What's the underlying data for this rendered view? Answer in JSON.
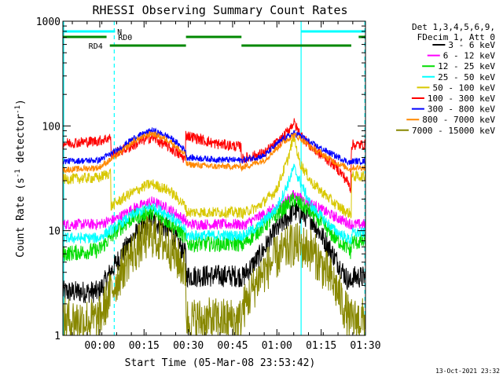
{
  "chart_data": {
    "type": "line",
    "title": "RHESSI Observing Summary Count Rates",
    "xlabel": "Start Time (05-Mar-08 23:53:42)",
    "ylabel_main": "Count Rate (s",
    "ylabel_sup1": "-1",
    "ylabel_mid": " detector",
    "ylabel_sup2": "-1",
    "ylabel_end": ")",
    "y_scale": "log",
    "ylim": [
      1,
      1000
    ],
    "xlim_minutes": [
      -6.2,
      96.3
    ],
    "x_ticks": [
      {
        "m": 6.3,
        "label": "00:00"
      },
      {
        "m": 21.3,
        "label": "00:15"
      },
      {
        "m": 36.3,
        "label": "00:30"
      },
      {
        "m": 51.3,
        "label": "00:45"
      },
      {
        "m": 66.3,
        "label": "01:00"
      },
      {
        "m": 81.3,
        "label": "01:15"
      },
      {
        "m": 96.3,
        "label": "01:30"
      }
    ],
    "y_ticks": [
      {
        "v": 1,
        "label": "1"
      },
      {
        "v": 10,
        "label": "10"
      },
      {
        "v": 100,
        "label": "100"
      },
      {
        "v": 1000,
        "label": "1000"
      }
    ],
    "footer_date": "13-Oct-2021 23:32",
    "legend": {
      "header": [
        "Det 1,3,4,5,6,9,",
        "FDecim 1, Att 0"
      ],
      "entries": [
        {
          "label": "3 - 6 keV",
          "color": "#000000"
        },
        {
          "label": "6 - 12 keV",
          "color": "#ff00ff"
        },
        {
          "label": "12 - 25 keV",
          "color": "#00dd00"
        },
        {
          "label": "25 - 50 keV",
          "color": "#00ffff"
        },
        {
          "label": "50 - 100 keV",
          "color": "#d8c800"
        },
        {
          "label": "100 - 300 keV",
          "color": "#ff0000"
        },
        {
          "label": "300 - 800 keV",
          "color": "#0000ff"
        },
        {
          "label": "800 - 7000 keV",
          "color": "#ff8800"
        },
        {
          "label": "7000 - 15000 keV",
          "color": "#888800"
        }
      ]
    },
    "flags": [
      {
        "label": "N",
        "color": "#00ffff",
        "segments": [
          [
            -6.2,
            11.5
          ],
          [
            74.5,
            96.3
          ]
        ]
      },
      {
        "label": "RD0",
        "color": "#008800",
        "segments": [
          [
            -6.2,
            8.6
          ],
          [
            35.5,
            54.3
          ],
          [
            94.0,
            96.3
          ]
        ]
      },
      {
        "label": "RD4",
        "color": "#008800",
        "segments": [
          [
            9.7,
            35.5
          ],
          [
            54.3,
            91.5
          ]
        ]
      }
    ],
    "gaps": [
      {
        "m": 11.2,
        "style": "dashed"
      },
      {
        "m": 74.5,
        "style": "solid"
      },
      {
        "m": 96.1,
        "style": "dashed"
      }
    ],
    "series": [
      {
        "name": "3 - 6 keV",
        "color": "#000000",
        "x": [
          -6.2,
          6.0,
          12.0,
          18.0,
          24.0,
          30.0,
          35.5,
          35.6,
          45.0,
          54.3,
          54.4,
          60.0,
          66.0,
          72.0,
          78.0,
          86.0,
          90.0,
          91.5,
          91.6,
          96.3
        ],
        "values": [
          2.6,
          2.6,
          5,
          9,
          12.5,
          10,
          5.8,
          3.7,
          3.7,
          3.7,
          3.5,
          5.5,
          10,
          15.5,
          13,
          5.5,
          3.5,
          3.1,
          3.6,
          3.6
        ]
      },
      {
        "name": "6 - 12 keV",
        "color": "#ff00ff",
        "x": [
          -6.2,
          6.0,
          12.0,
          18.0,
          24.0,
          30.0,
          35.5,
          35.6,
          45.0,
          54.3,
          54.4,
          60.0,
          66.0,
          72.0,
          78.0,
          86.0,
          90.0,
          91.5,
          91.6,
          96.3
        ],
        "values": [
          11.5,
          11.5,
          13,
          16.5,
          19,
          16,
          12.5,
          11.5,
          11.5,
          11.5,
          11,
          13.5,
          16.5,
          22,
          18,
          13.5,
          12,
          11.5,
          11.5,
          11.5
        ]
      },
      {
        "name": "12 - 25 keV",
        "color": "#00dd00",
        "x": [
          -6.2,
          6.0,
          12.0,
          18.0,
          24.0,
          30.0,
          35.5,
          35.6,
          45.0,
          54.3,
          54.4,
          60.0,
          66.0,
          72.0,
          78.0,
          86.0,
          90.0,
          91.5,
          91.6,
          96.3
        ],
        "values": [
          6,
          6.5,
          10,
          13.5,
          15,
          12,
          8.5,
          7.5,
          7.5,
          7.5,
          7.2,
          10,
          14,
          20,
          15,
          8.5,
          7,
          6.2,
          7.8,
          7.8
        ]
      },
      {
        "name": "25 - 50 keV",
        "color": "#00ffff",
        "x": [
          -6.2,
          6.0,
          12.0,
          18.0,
          24.0,
          30.0,
          35.5,
          35.6,
          45.0,
          54.3,
          54.4,
          60.0,
          66.0,
          70.0,
          72.0,
          74.0,
          78.0,
          86.0,
          90.0,
          91.5,
          91.6,
          96.3
        ],
        "values": [
          8.5,
          8.5,
          11,
          14.5,
          17,
          14,
          10,
          9,
          9,
          9,
          8.8,
          11,
          16,
          28,
          40,
          30,
          17,
          10,
          8.5,
          8,
          9.5,
          9.5
        ]
      },
      {
        "name": "50 - 100 keV",
        "color": "#d8c800",
        "x": [
          -6.2,
          6.0,
          10.0,
          10.1,
          16.0,
          22.0,
          24.0,
          30.0,
          35.5,
          35.6,
          45.0,
          54.3,
          54.4,
          60.0,
          66.0,
          70.0,
          72.0,
          74.0,
          78.0,
          86.0,
          90.0,
          91.5,
          91.6,
          96.3
        ],
        "values": [
          31,
          32,
          36,
          17,
          22,
          27,
          28,
          24,
          17,
          15,
          15,
          15,
          14.5,
          17,
          24,
          48,
          80,
          45,
          29,
          18,
          15,
          14.5,
          33,
          33
        ]
      },
      {
        "name": "100 - 300 keV",
        "color": "#ff0000",
        "x": [
          -6.2,
          6.0,
          10.0,
          10.1,
          16.0,
          22.0,
          24.0,
          30.0,
          35.3,
          35.4,
          45.0,
          54.2,
          54.3,
          62.0,
          68.0,
          72.0,
          74.0,
          78.0,
          86.0,
          90.0,
          91.4,
          91.5,
          96.3
        ],
        "values": [
          68,
          72,
          78,
          53,
          62,
          75,
          78,
          62,
          48,
          82,
          68,
          63,
          48,
          55,
          75,
          108,
          85,
          62,
          42,
          30,
          25,
          66,
          66
        ]
      },
      {
        "name": "300 - 800 keV",
        "color": "#0000ff",
        "x": [
          -6.2,
          6.0,
          12.0,
          18.0,
          24.0,
          30.0,
          35.5,
          35.6,
          45.0,
          54.3,
          54.4,
          62.0,
          68.0,
          72.0,
          74.0,
          78.0,
          86.0,
          90.0,
          91.5,
          91.6,
          96.3
        ],
        "values": [
          46,
          47,
          58,
          77,
          91,
          78,
          58,
          50,
          48,
          47,
          47,
          52,
          74,
          85,
          82,
          68,
          52,
          46,
          44,
          46,
          46
        ]
      },
      {
        "name": "800 - 7000 keV",
        "color": "#ff8800",
        "x": [
          -6.2,
          6.0,
          12.0,
          18.0,
          24.0,
          30.0,
          35.5,
          35.6,
          45.0,
          54.3,
          54.4,
          62.0,
          68.0,
          72.0,
          74.0,
          78.0,
          86.0,
          90.0,
          91.5,
          91.6,
          96.3
        ],
        "values": [
          38,
          40,
          52,
          72,
          85,
          72,
          52,
          43,
          41,
          41,
          40,
          47,
          68,
          82,
          77,
          62,
          45,
          40,
          38,
          40,
          40
        ]
      },
      {
        "name": "7000 - 15000 keV",
        "color": "#888800",
        "x": [
          -6.2,
          6.0,
          10.0,
          16.0,
          22.0,
          24.0,
          30.0,
          35.5,
          35.6,
          45.0,
          54.3,
          54.4,
          60.0,
          66.0,
          72.0,
          78.0,
          86.0,
          90.0,
          91.5,
          91.6,
          96.3
        ],
        "values": [
          1.4,
          1.4,
          2.6,
          5.5,
          8.5,
          9,
          7,
          4,
          1.4,
          1.4,
          1.4,
          1.7,
          3.5,
          5.5,
          7.5,
          6.5,
          3,
          1.6,
          1.3,
          1.4,
          1.4
        ]
      }
    ]
  }
}
